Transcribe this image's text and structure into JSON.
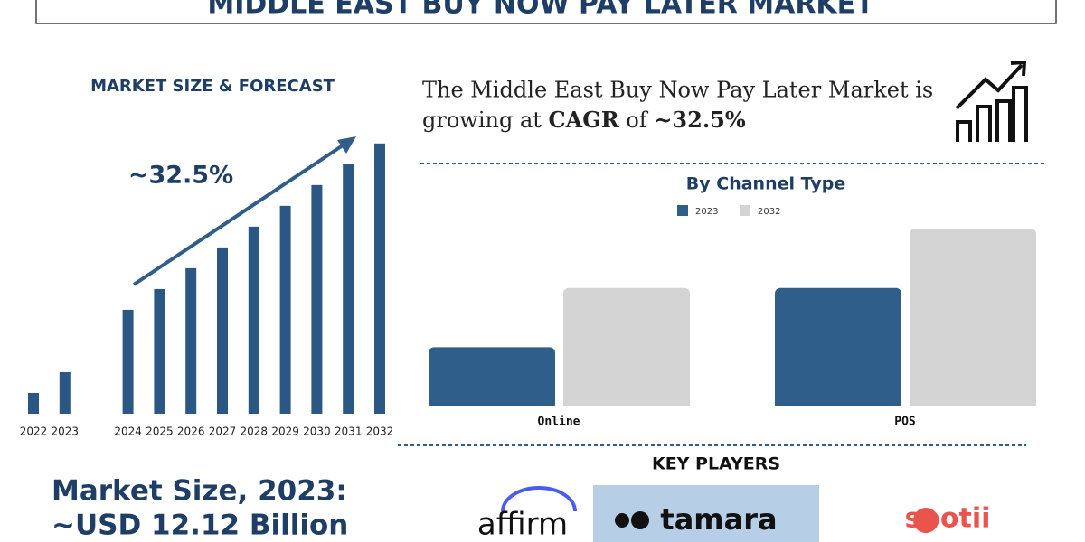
{
  "header": {
    "title": "MIDDLE EAST BUY NOW PAY LATER MARKET"
  },
  "growth_statement": {
    "parts": [
      "The Middle East Buy Now Pay Later Market is",
      "growing at ",
      "CAGR",
      " of ",
      "~32.5%"
    ]
  },
  "chart_data": [
    {
      "type": "bar",
      "title": "MARKET SIZE & FORECAST",
      "annotation": "~32.5%",
      "categories": [
        "2022",
        "2023",
        "2024",
        "2025",
        "2026",
        "2027",
        "2028",
        "2029",
        "2030",
        "2031",
        "2032"
      ],
      "values": [
        1,
        2,
        5,
        6,
        7,
        8,
        9,
        10,
        11,
        12,
        13
      ],
      "color": "#2a5784",
      "ylim": [
        0,
        13.6
      ]
    },
    {
      "type": "grouped-bar",
      "title": "By Channel Type",
      "categories": [
        "Online",
        "POS"
      ],
      "series": [
        {
          "name": "2023",
          "color": "#2f5e8a",
          "values": [
            1,
            2
          ]
        },
        {
          "name": "2032",
          "color": "#d4d4d4",
          "values": [
            2,
            3
          ]
        }
      ],
      "ylim": [
        0,
        3.2
      ]
    }
  ],
  "market_size": {
    "label": "Market Size, 2023:",
    "value": "~USD 12.12 Billion"
  },
  "key_players": {
    "title": "KEY PLAYERS",
    "names": [
      "affirm",
      "tamara",
      "spotii"
    ]
  }
}
